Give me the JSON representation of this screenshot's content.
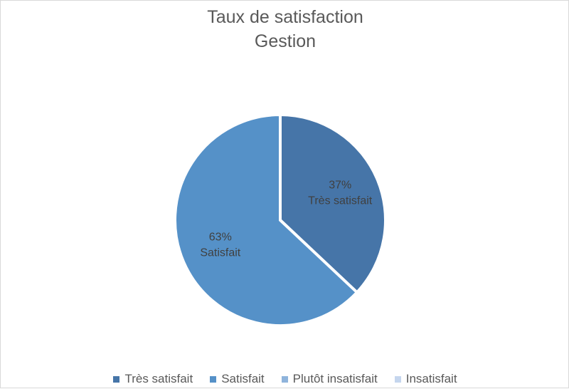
{
  "chart_data": {
    "type": "pie",
    "title": "Taux de satisfaction",
    "subtitle": "Gestion",
    "categories": [
      "Très satisfait",
      "Satisfait",
      "Plutôt insatisfait",
      "Insatisfait"
    ],
    "values": [
      37,
      63,
      0,
      0
    ],
    "colors": [
      "#4675a8",
      "#5591c8",
      "#8fb4dc",
      "#c5d6ee"
    ],
    "data_labels": [
      {
        "percent": "37%",
        "name": "Très satisfait"
      },
      {
        "percent": "63%",
        "name": "Satisfait"
      }
    ],
    "legend": [
      "Très satisfait",
      "Satisfait",
      "Plutôt insatisfait",
      "Insatisfait"
    ],
    "legend_position": "bottom"
  }
}
